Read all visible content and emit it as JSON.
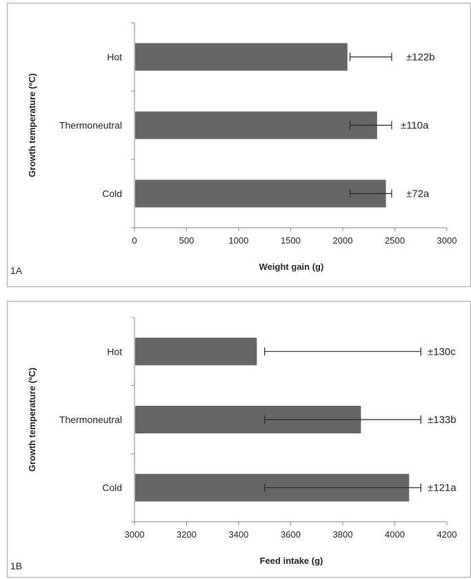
{
  "chart_data": [
    {
      "type": "bar",
      "orientation": "horizontal",
      "panel_label": "1A",
      "categories": [
        "Hot",
        "Thermoneutral",
        "Cold"
      ],
      "values": [
        2045,
        2330,
        2415
      ],
      "error_low": [
        2070,
        2070,
        2070
      ],
      "error_high": [
        2470,
        2470,
        2470
      ],
      "annotations": [
        "±122b",
        "±110a",
        "±72a"
      ],
      "xlabel": "Weight gain  (g)",
      "ylabel": "Growth temperature (ºC)",
      "xlim": [
        0,
        3000
      ],
      "xticks": [
        "0",
        "500",
        "1000",
        "1500",
        "2000",
        "2500",
        "3000"
      ],
      "bar_color": "#666666",
      "grid": false,
      "legend": "none"
    },
    {
      "type": "bar",
      "orientation": "horizontal",
      "panel_label": "1B",
      "categories": [
        "Hot",
        "Thermoneutral",
        "Cold"
      ],
      "values": [
        3470,
        3870,
        4055
      ],
      "error_low": [
        3500,
        3500,
        3500
      ],
      "error_high": [
        4100,
        4100,
        4100
      ],
      "annotations": [
        "±130c",
        "±133b",
        "±121a"
      ],
      "xlabel": "Feed intake (g)",
      "ylabel": "Growth temperature (ºC)",
      "xlim": [
        3000,
        4200
      ],
      "xticks": [
        "3000",
        "3200",
        "3400",
        "3600",
        "3800",
        "4000",
        "4200"
      ],
      "bar_color": "#666666",
      "grid": false,
      "legend": "none"
    }
  ]
}
